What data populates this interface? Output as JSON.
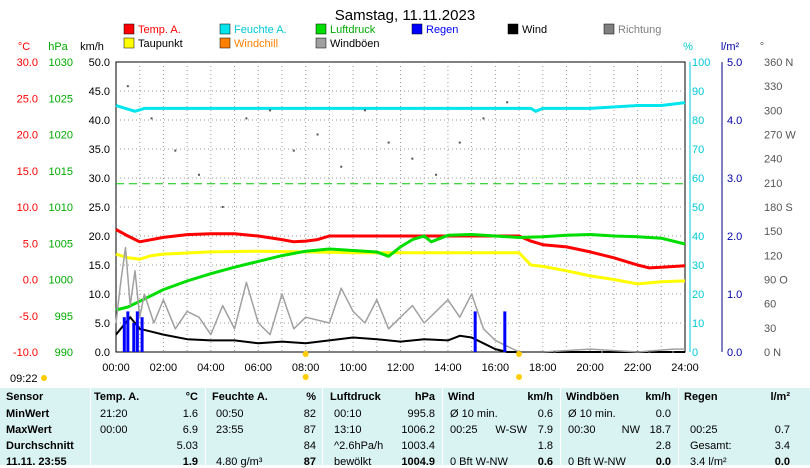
{
  "chart_data": {
    "type": "line",
    "title": "Samstag, 11.11.2023",
    "x_tick_labels": [
      "00:00",
      "02:00",
      "04:00",
      "06:00",
      "08:00",
      "10:00",
      "12:00",
      "14:00",
      "16:00",
      "18:00",
      "20:00",
      "22:00",
      "24:00"
    ],
    "x_range_hours": [
      0,
      24
    ],
    "grid": true,
    "legend": [
      {
        "name": "Temp. A.",
        "color": "#ff0000"
      },
      {
        "name": "Feuchte A.",
        "color": "#00e5ee"
      },
      {
        "name": "Luftdruck",
        "color": "#00dd00"
      },
      {
        "name": "Regen",
        "color": "#0000ff"
      },
      {
        "name": "Wind",
        "color": "#000000"
      },
      {
        "name": "Richtung",
        "color": "#808080"
      },
      {
        "name": "Taupunkt",
        "color": "#ffff00"
      },
      {
        "name": "Windchill",
        "color": "#ff8000"
      },
      {
        "name": "Windböen",
        "color": "#a0a0a0"
      }
    ],
    "axes": [
      {
        "unit": "°C",
        "color": "#ff0000",
        "range": [
          -10,
          30
        ],
        "ticks": [
          "30.0",
          "25.0",
          "20.0",
          "15.0",
          "10.0",
          "5.0",
          "0.0",
          "-5.0",
          "-10.0"
        ]
      },
      {
        "unit": "hPa",
        "color": "#00aa00",
        "range": [
          990,
          1030
        ],
        "ticks": [
          "1030",
          "1025",
          "1020",
          "1015",
          "1010",
          "1005",
          "1000",
          "995",
          "990"
        ]
      },
      {
        "unit": "km/h",
        "color": "#000000",
        "range": [
          0,
          50
        ],
        "ticks": [
          "50.0",
          "45.0",
          "40.0",
          "35.0",
          "30.0",
          "25.0",
          "20.0",
          "15.0",
          "10.0",
          "5.0",
          "0.0"
        ]
      },
      {
        "unit": "%",
        "color": "#00c8d8",
        "range": [
          0,
          100
        ],
        "ticks": [
          "100",
          "90",
          "80",
          "70",
          "60",
          "50",
          "40",
          "30",
          "20",
          "10",
          "0"
        ]
      },
      {
        "unit": "l/m²",
        "color": "#0000aa",
        "range": [
          0,
          5
        ],
        "ticks": [
          "5.0",
          "4.0",
          "3.0",
          "2.0",
          "1.0",
          "0.0"
        ]
      },
      {
        "unit": "°",
        "color": "#555555",
        "range": [
          0,
          360
        ],
        "ticks": [
          "360 N",
          "330",
          "300",
          "270 W",
          "240",
          "210",
          "180 S",
          "150",
          "120",
          "90 O",
          "60",
          "30",
          "0 N"
        ]
      }
    ],
    "series": [
      {
        "name": "Temp. A.",
        "axis": "°C",
        "color": "#ff0000",
        "x": [
          0,
          0.5,
          1,
          2,
          3,
          4,
          5,
          6,
          7,
          7.5,
          8,
          8.5,
          9,
          10,
          12,
          14,
          16,
          17,
          17.5,
          18,
          19,
          20,
          21,
          22,
          22.5,
          23,
          24
        ],
        "y": [
          6.9,
          6.0,
          5.2,
          5.8,
          6.2,
          6.3,
          6.3,
          6.0,
          5.5,
          5.2,
          5.3,
          5.5,
          6.0,
          6.0,
          6.0,
          6.0,
          6.0,
          6.0,
          5.3,
          4.8,
          4.5,
          3.8,
          3.0,
          2.0,
          1.6,
          1.7,
          1.9
        ]
      },
      {
        "name": "Taupunkt",
        "axis": "°C",
        "color": "#ffff00",
        "x": [
          0,
          0.5,
          1,
          1.5,
          2,
          4,
          6,
          8,
          10,
          12,
          14,
          16,
          17,
          17.5,
          18,
          19,
          20,
          21,
          22,
          23,
          24
        ],
        "y": [
          3.5,
          3.0,
          2.8,
          3.3,
          3.5,
          3.8,
          3.9,
          3.8,
          3.7,
          3.7,
          3.7,
          3.7,
          3.7,
          2.0,
          1.8,
          1.2,
          0.5,
          0.0,
          -0.6,
          -0.3,
          -0.2
        ]
      },
      {
        "name": "Feuchte A.",
        "axis": "%",
        "color": "#00e5ee",
        "x": [
          0,
          0.4,
          0.8,
          1.2,
          1.6,
          2,
          4,
          6,
          8,
          10,
          12,
          14,
          16,
          17.5,
          17.7,
          18,
          20,
          22,
          23,
          24
        ],
        "y": [
          85,
          84,
          83,
          84,
          84,
          84,
          84,
          84,
          84,
          84,
          84,
          84,
          84,
          84,
          83,
          84,
          84,
          85,
          85,
          86
        ]
      },
      {
        "name": "Luftdruck",
        "axis": "hPa",
        "color": "#00dd00",
        "x": [
          0,
          0.5,
          1,
          2,
          3,
          4,
          5,
          6,
          7,
          8,
          9,
          10,
          11,
          11.5,
          12,
          12.5,
          13,
          13.3,
          14,
          15,
          16,
          17,
          18,
          19,
          20,
          21,
          22,
          23,
          24
        ],
        "y": [
          995.8,
          996.2,
          997.0,
          998.6,
          999.8,
          1000.8,
          1001.7,
          1002.5,
          1003.3,
          1003.9,
          1004.2,
          1004.0,
          1003.8,
          1003.2,
          1004.5,
          1005.5,
          1006.0,
          1005.2,
          1006.1,
          1006.2,
          1006.0,
          1005.8,
          1005.9,
          1006.1,
          1006.2,
          1006.0,
          1005.9,
          1005.7,
          1004.9
        ]
      },
      {
        "name": "Wind",
        "axis": "km/h",
        "color": "#000000",
        "x": [
          0,
          0.3,
          0.6,
          1,
          1.5,
          2,
          3,
          4,
          5,
          6,
          7,
          8,
          9,
          10,
          11,
          12,
          13,
          14,
          14.5,
          15,
          15.5,
          16,
          16.5,
          17,
          24
        ],
        "y": [
          3.0,
          4.5,
          6.0,
          4.0,
          3.5,
          3.0,
          2.2,
          2.0,
          2.0,
          1.5,
          1.8,
          1.5,
          2.0,
          2.5,
          2.2,
          1.8,
          2.2,
          2.0,
          2.8,
          2.5,
          1.5,
          0.5,
          0.0,
          0.0,
          0.0
        ]
      },
      {
        "name": "Windböen",
        "axis": "km/h",
        "color": "#a0a0a0",
        "x": [
          0,
          0.2,
          0.4,
          0.6,
          0.8,
          1.0,
          1.2,
          1.6,
          2.0,
          2.5,
          3.0,
          3.5,
          4.0,
          4.5,
          5.0,
          5.5,
          6.0,
          6.5,
          7.0,
          7.5,
          8.0,
          9.0,
          9.5,
          10.0,
          10.5,
          11.0,
          11.5,
          12.0,
          12.5,
          13.0,
          13.5,
          14.0,
          14.5,
          15.0,
          15.5,
          16.0,
          16.5,
          17.0,
          18.0,
          20.0,
          22.0,
          23.5,
          24.0
        ],
        "y": [
          5,
          12,
          18,
          8,
          14,
          6,
          10,
          5,
          9,
          4,
          7,
          6,
          3,
          8,
          4,
          12,
          5,
          3,
          10,
          4,
          6,
          5,
          11,
          7,
          5,
          9,
          4,
          6,
          8,
          5,
          7,
          9,
          6,
          10,
          4,
          2,
          1,
          0,
          0,
          0.5,
          0,
          0.5,
          0.5
        ]
      },
      {
        "name": "Regen",
        "axis": "l/m²",
        "type": "bar",
        "color": "#0000ff",
        "x": [
          0.35,
          0.5,
          0.75,
          0.9,
          1.1,
          15.15,
          16.4
        ],
        "y": [
          0.6,
          0.7,
          0.5,
          0.7,
          0.6,
          0.7,
          0.7
        ]
      },
      {
        "name": "Richtung",
        "axis": "°",
        "type": "scatter",
        "color": "#555555",
        "x": [
          0.5,
          1.5,
          2.5,
          3.5,
          4.5,
          5.5,
          6.5,
          7.5,
          8.5,
          9.5,
          10.5,
          11.5,
          12.5,
          13.5,
          14.5,
          15.5,
          16.5,
          18.5,
          20.5,
          22.5,
          23.5
        ],
        "y": [
          330,
          290,
          250,
          220,
          180,
          290,
          300,
          250,
          270,
          230,
          300,
          260,
          240,
          220,
          260,
          290,
          310,
          0,
          0,
          0,
          0
        ]
      }
    ],
    "annotations": {
      "sunrise": "08:00",
      "sunset": "17:00",
      "left_time": "09:22"
    }
  },
  "stats": {
    "headers": {
      "sensor": "Sensor",
      "temp": "Temp. A.",
      "temp_unit": "°C",
      "hum": "Feuchte A.",
      "hum_unit": "%",
      "press": "Luftdruck",
      "press_unit": "hPa",
      "wind": "Wind",
      "wind_unit": "km/h",
      "gust": "Windböen",
      "gust_unit": "km/h",
      "rain": "Regen",
      "rain_unit": "l/m²"
    },
    "rows": [
      {
        "label": "MinWert",
        "temp_time": "21:20",
        "temp_val": "1.6",
        "hum_time": "00:50",
        "hum_val": "82",
        "press_time": "00:10",
        "press_val": "995.8",
        "wind_time": "Ø 10 min.",
        "wind_val": "0.6",
        "gust_time": "Ø 10 min.",
        "gust_val": "0.0",
        "rain_time": "",
        "rain_val": ""
      },
      {
        "label": "MaxWert",
        "temp_time": "00:00",
        "temp_val": "6.9",
        "hum_time": "23:55",
        "hum_val": "87",
        "press_time": "13:10",
        "press_val": "1006.2",
        "wind_time": "00:25",
        "wind_dir": "W-SW",
        "wind_val": "7.9",
        "gust_time": "00:30",
        "gust_dir": "NW",
        "gust_val": "18.7",
        "rain_time": "00:25",
        "rain_val": "0.7"
      },
      {
        "label": "Durchschnitt",
        "temp_time": "",
        "temp_val": "5.03",
        "hum_time": "",
        "hum_val": "84",
        "press_time": "^2.6hPa/h",
        "press_val": "1003.4",
        "wind_time": "",
        "wind_val": "1.8",
        "gust_time": "",
        "gust_val": "2.8",
        "rain_time": "Gesamt:",
        "rain_val": "3.4"
      },
      {
        "label": "11.11. 23:55",
        "temp_time": "",
        "temp_val": "1.9",
        "hum_time": "4.80 g/m³",
        "hum_val": "87",
        "press_time": "bewölkt",
        "press_val": "1004.9",
        "wind_time": "0 Bft W-NW",
        "wind_val": "0.6",
        "gust_time": "0 Bft W-NW",
        "gust_val": "0.0",
        "rain_time": "3.4 l/m²",
        "rain_val": "0.0"
      }
    ]
  }
}
